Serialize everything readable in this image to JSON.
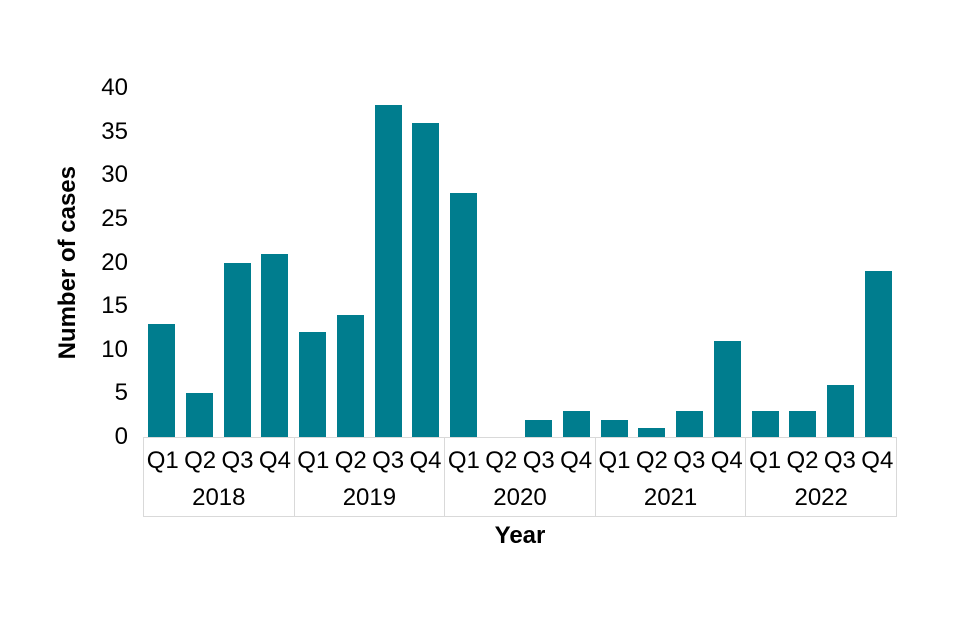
{
  "chart_data": {
    "type": "bar",
    "xlabel": "Year",
    "ylabel": "Number of cases",
    "ylim": [
      0,
      40
    ],
    "yticks": [
      0,
      5,
      10,
      15,
      20,
      25,
      30,
      35,
      40
    ],
    "grid": false,
    "legend": "none",
    "bar_color": "#007D8E",
    "axis_line_color": "#D9D9D9",
    "quarter_labels": [
      "Q1",
      "Q2",
      "Q3",
      "Q4"
    ],
    "groups": [
      {
        "year": "2018",
        "values": [
          13,
          5,
          20,
          21
        ]
      },
      {
        "year": "2019",
        "values": [
          12,
          14,
          38,
          36
        ]
      },
      {
        "year": "2020",
        "values": [
          28,
          0,
          2,
          3
        ]
      },
      {
        "year": "2021",
        "values": [
          2,
          1,
          3,
          11
        ]
      },
      {
        "year": "2022",
        "values": [
          3,
          3,
          6,
          19
        ]
      }
    ],
    "categories": [
      "2018 Q1",
      "2018 Q2",
      "2018 Q3",
      "2018 Q4",
      "2019 Q1",
      "2019 Q2",
      "2019 Q3",
      "2019 Q4",
      "2020 Q1",
      "2020 Q2",
      "2020 Q3",
      "2020 Q4",
      "2021 Q1",
      "2021 Q2",
      "2021 Q3",
      "2021 Q4",
      "2022 Q1",
      "2022 Q2",
      "2022 Q3",
      "2022 Q4"
    ],
    "values": [
      13,
      5,
      20,
      21,
      12,
      14,
      38,
      36,
      28,
      0,
      2,
      3,
      2,
      1,
      3,
      11,
      3,
      3,
      6,
      19
    ]
  }
}
